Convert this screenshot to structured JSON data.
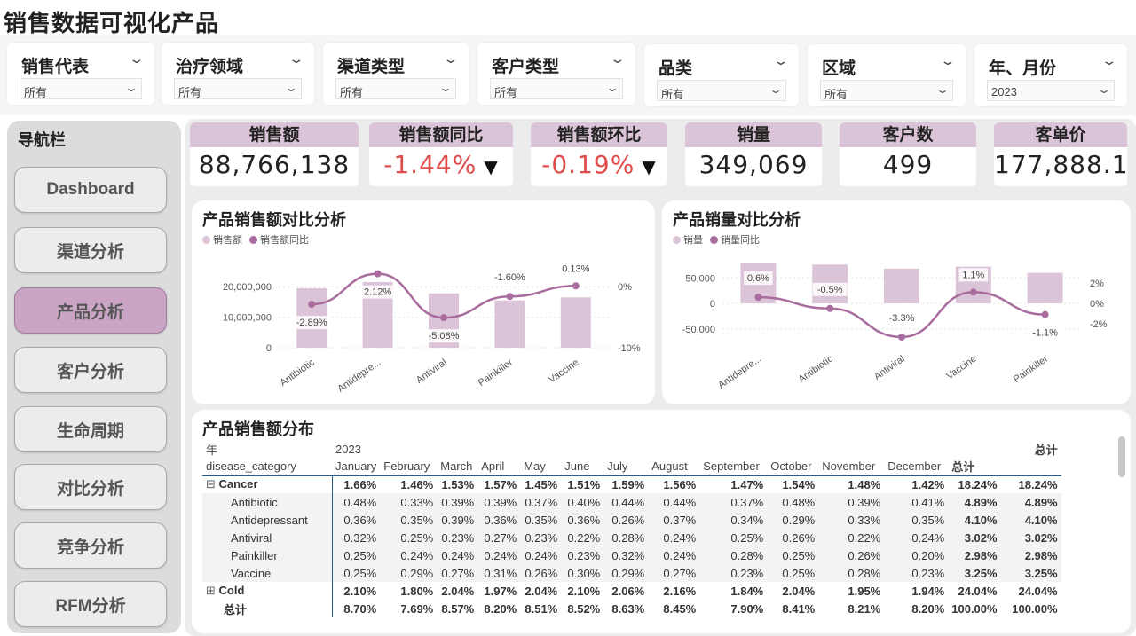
{
  "page_title": "销售数据可视化产品",
  "slicers": [
    {
      "title": "销售代表",
      "value": "所有"
    },
    {
      "title": "治疗领域",
      "value": "所有"
    },
    {
      "title": "渠道类型",
      "value": "所有"
    },
    {
      "title": "客户类型",
      "value": "所有"
    },
    {
      "title": "品类",
      "value": "所有"
    },
    {
      "title": "区域",
      "value": "所有"
    },
    {
      "title": "年、月份",
      "value": "2023"
    }
  ],
  "nav": {
    "title": "导航栏",
    "items": [
      "Dashboard",
      "渠道分析",
      "产品分析",
      "客户分析",
      "生命周期",
      "对比分析",
      "竞争分析",
      "RFM分析"
    ],
    "active": "产品分析"
  },
  "kpis": [
    {
      "label": "销售额",
      "value": "88,766,138"
    },
    {
      "label": "销售额同比",
      "value": "-1.44%",
      "arrow": "▼"
    },
    {
      "label": "销售额环比",
      "value": "-0.19%",
      "arrow": "▼"
    },
    {
      "label": "销量",
      "value": "349,069"
    },
    {
      "label": "客户数",
      "value": "499"
    },
    {
      "label": "客单价",
      "value": "177,888.1"
    }
  ],
  "colors": {
    "bar": "#dcc4d8",
    "line": "#a86c9e",
    "accent_active": "#c9a4c4",
    "negative": "#e04b4b"
  },
  "chart_data": [
    {
      "type": "bar",
      "title": "产品销售额对比分析",
      "legend": [
        "销售额",
        "销售额同比"
      ],
      "categories": [
        "Antibiotic",
        "Antidepre...",
        "Antiviral",
        "Painkiller",
        "Vaccine"
      ],
      "series": [
        {
          "name": "销售额",
          "values": [
            19500000,
            21500000,
            17800000,
            15500000,
            16500000
          ]
        },
        {
          "name": "销售额同比",
          "type": "line",
          "values": [
            -2.89,
            2.12,
            -5.08,
            -1.6,
            0.13
          ],
          "labels": [
            "-2.89%",
            "2.12%",
            "-5.08%",
            "-1.60%",
            "0.13%"
          ]
        }
      ],
      "y_ticks": [
        "20,000,000",
        "10,000,000",
        "0"
      ],
      "y2_ticks": [
        "0%",
        "-10%"
      ],
      "ylim": [
        0,
        25000000
      ],
      "y2lim": [
        -10,
        2.5
      ]
    },
    {
      "type": "bar",
      "title": "产品销量对比分析",
      "legend": [
        "销量",
        "销量同比"
      ],
      "categories": [
        "Antidepre...",
        "Antibiotic",
        "Antiviral",
        "Vaccine",
        "Painkiller"
      ],
      "series": [
        {
          "name": "销量",
          "values": [
            80000,
            76000,
            68000,
            72000,
            60000
          ]
        },
        {
          "name": "销量同比",
          "type": "line",
          "values": [
            0.6,
            -0.5,
            -3.3,
            1.1,
            -1.1
          ],
          "labels": [
            "0.6%",
            "-0.5%",
            "-3.3%",
            "1.1%",
            "-1.1%"
          ]
        }
      ],
      "y_ticks": [
        "50,000",
        "0",
        "-50,000"
      ],
      "y2_ticks": [
        "2%",
        "0%",
        "-2%"
      ],
      "ylim": [
        -80000,
        80000
      ],
      "y2lim": [
        -4,
        4
      ]
    }
  ],
  "matrix": {
    "title": "产品销售额分布",
    "row_header_1": "年",
    "row_header_2": "disease_category",
    "year": "2023",
    "total_header": "总计",
    "columns": [
      "January",
      "February",
      "March",
      "April",
      "May",
      "June",
      "July",
      "August",
      "September",
      "October",
      "November",
      "December",
      "总计",
      ""
    ],
    "rows": [
      {
        "label": "Cancer",
        "level": 0,
        "expand": "⊟",
        "values": [
          "1.66%",
          "1.46%",
          "1.53%",
          "1.57%",
          "1.45%",
          "1.51%",
          "1.59%",
          "1.56%",
          "1.47%",
          "1.54%",
          "1.48%",
          "1.42%",
          "18.24%",
          "18.24%"
        ]
      },
      {
        "label": "Antibiotic",
        "level": 1,
        "values": [
          "0.48%",
          "0.33%",
          "0.39%",
          "0.39%",
          "0.37%",
          "0.40%",
          "0.44%",
          "0.44%",
          "0.37%",
          "0.48%",
          "0.39%",
          "0.41%",
          "4.89%",
          "4.89%"
        ]
      },
      {
        "label": "Antidepressant",
        "level": 1,
        "values": [
          "0.36%",
          "0.35%",
          "0.39%",
          "0.36%",
          "0.35%",
          "0.36%",
          "0.26%",
          "0.37%",
          "0.34%",
          "0.29%",
          "0.33%",
          "0.35%",
          "4.10%",
          "4.10%"
        ]
      },
      {
        "label": "Antiviral",
        "level": 1,
        "values": [
          "0.32%",
          "0.25%",
          "0.23%",
          "0.27%",
          "0.23%",
          "0.22%",
          "0.28%",
          "0.24%",
          "0.25%",
          "0.26%",
          "0.22%",
          "0.24%",
          "3.02%",
          "3.02%"
        ]
      },
      {
        "label": "Painkiller",
        "level": 1,
        "values": [
          "0.25%",
          "0.24%",
          "0.24%",
          "0.24%",
          "0.24%",
          "0.23%",
          "0.32%",
          "0.24%",
          "0.28%",
          "0.25%",
          "0.26%",
          "0.20%",
          "2.98%",
          "2.98%"
        ]
      },
      {
        "label": "Vaccine",
        "level": 1,
        "values": [
          "0.25%",
          "0.29%",
          "0.27%",
          "0.31%",
          "0.26%",
          "0.30%",
          "0.29%",
          "0.27%",
          "0.23%",
          "0.25%",
          "0.28%",
          "0.23%",
          "3.25%",
          "3.25%"
        ]
      },
      {
        "label": "Cold",
        "level": 0,
        "expand": "⊞",
        "values": [
          "2.10%",
          "1.80%",
          "2.04%",
          "1.97%",
          "2.04%",
          "2.10%",
          "2.06%",
          "2.16%",
          "1.84%",
          "2.04%",
          "1.95%",
          "1.94%",
          "24.04%",
          "24.04%"
        ]
      },
      {
        "label": "总计",
        "level": 0,
        "values": [
          "8.70%",
          "7.69%",
          "8.57%",
          "8.20%",
          "8.51%",
          "8.52%",
          "8.63%",
          "8.45%",
          "7.90%",
          "8.41%",
          "8.21%",
          "8.20%",
          "100.00%",
          "100.00%"
        ]
      }
    ]
  }
}
